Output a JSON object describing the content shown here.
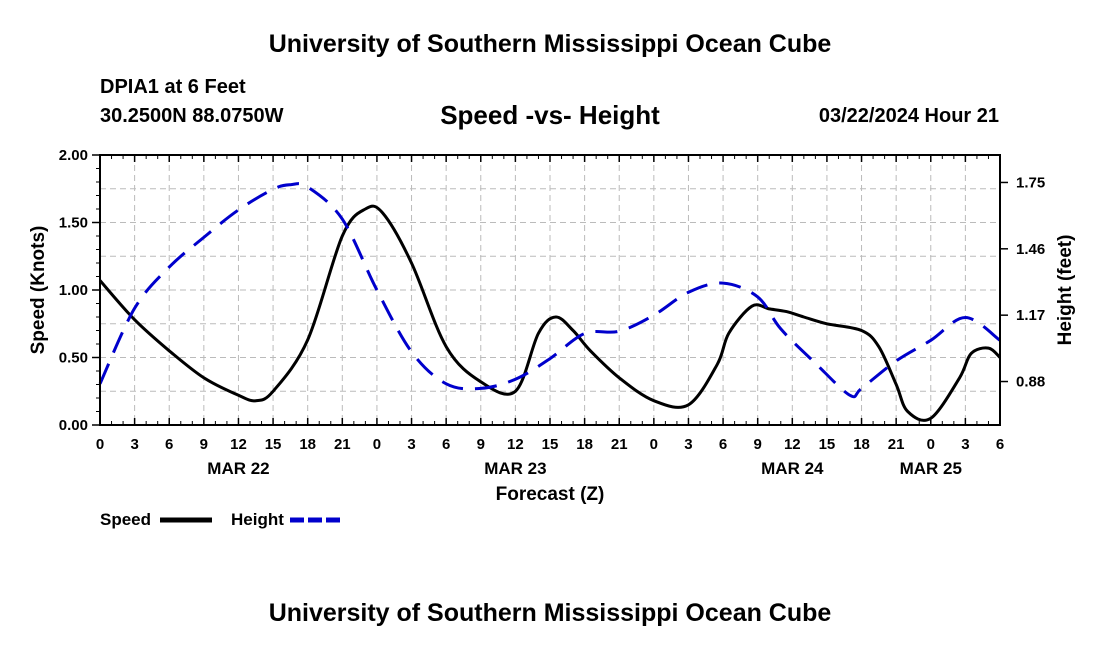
{
  "header": {
    "title": "University of Southern Mississippi Ocean Cube",
    "station_name": "DPIA1 at 6 Feet",
    "station_coords": "30.2500N  88.0750W",
    "subtitle": "Speed -vs- Height",
    "run_time": "03/22/2024 Hour 21"
  },
  "footer": {
    "title": "University of Southern Mississippi Ocean Cube"
  },
  "chart_data": {
    "type": "line",
    "title": "Speed -vs- Height",
    "xlabel": "Forecast (Z)",
    "ylabel": "Speed (Knots)",
    "y2label": "Height (feet)",
    "grid": true,
    "xlim": [
      0,
      78
    ],
    "ylim": [
      0,
      2.0
    ],
    "y2lim": [
      0.69,
      1.87
    ],
    "x_ticks": [
      0,
      3,
      6,
      9,
      12,
      15,
      18,
      21,
      24,
      27,
      30,
      33,
      36,
      39,
      42,
      45,
      48,
      51,
      54,
      57,
      60,
      63,
      66,
      69,
      72,
      75,
      78
    ],
    "x_tick_labels": [
      "0",
      "3",
      "6",
      "9",
      "12",
      "15",
      "18",
      "21",
      "0",
      "3",
      "6",
      "9",
      "12",
      "15",
      "18",
      "21",
      "0",
      "3",
      "6",
      "9",
      "12",
      "15",
      "18",
      "21",
      "0",
      "3",
      "6"
    ],
    "date_labels": [
      {
        "x": 12,
        "label": "MAR 22"
      },
      {
        "x": 36,
        "label": "MAR 23"
      },
      {
        "x": 60,
        "label": "MAR 24"
      },
      {
        "x": 72,
        "label": "MAR 25"
      }
    ],
    "y_ticks": [
      0.0,
      0.5,
      1.0,
      1.5,
      2.0
    ],
    "y_tick_labels": [
      "0.00",
      "0.50",
      "1.00",
      "1.50",
      "2.00"
    ],
    "y2_ticks": [
      0.88,
      1.17,
      1.46,
      1.75
    ],
    "y2_tick_labels": [
      "0.88",
      "1.17",
      "1.46",
      "1.75"
    ],
    "legend": [
      {
        "label": "Speed",
        "color": "#000000",
        "style": "solid"
      },
      {
        "label": "Height",
        "color": "#0000cc",
        "style": "dashed"
      }
    ],
    "series": [
      {
        "name": "Speed",
        "axis": "left",
        "color": "#000000",
        "style": "solid",
        "x": [
          0,
          3,
          6,
          9,
          12,
          13.5,
          15,
          18,
          21,
          23,
          24.5,
          27,
          30,
          33,
          36,
          38,
          39.5,
          41,
          42.5,
          45,
          48,
          51,
          53.5,
          54.5,
          56.5,
          58,
          59.5,
          61,
          63,
          66,
          67.5,
          69,
          70,
          72,
          74.5,
          75.5,
          77,
          78
        ],
        "y": [
          1.07,
          0.78,
          0.55,
          0.35,
          0.22,
          0.18,
          0.25,
          0.63,
          1.4,
          1.6,
          1.57,
          1.2,
          0.58,
          0.32,
          0.25,
          0.68,
          0.8,
          0.7,
          0.55,
          0.35,
          0.18,
          0.15,
          0.45,
          0.68,
          0.88,
          0.86,
          0.84,
          0.8,
          0.75,
          0.7,
          0.58,
          0.3,
          0.1,
          0.05,
          0.35,
          0.53,
          0.57,
          0.5
        ]
      },
      {
        "name": "Height",
        "axis": "right",
        "color": "#0000cc",
        "style": "dashed",
        "x": [
          0,
          3,
          6,
          9,
          12,
          15,
          16.5,
          18,
          21,
          24,
          27,
          30,
          33,
          36,
          39,
          42,
          45,
          48,
          51,
          54,
          57,
          59,
          62,
          65,
          66,
          69,
          72,
          75,
          78
        ],
        "y": [
          0.87,
          1.2,
          1.38,
          1.51,
          1.63,
          1.72,
          1.74,
          1.73,
          1.59,
          1.28,
          1.01,
          0.87,
          0.85,
          0.89,
          0.98,
          1.09,
          1.1,
          1.17,
          1.27,
          1.31,
          1.25,
          1.11,
          0.96,
          0.82,
          0.85,
          0.97,
          1.06,
          1.16,
          1.06
        ]
      }
    ]
  }
}
